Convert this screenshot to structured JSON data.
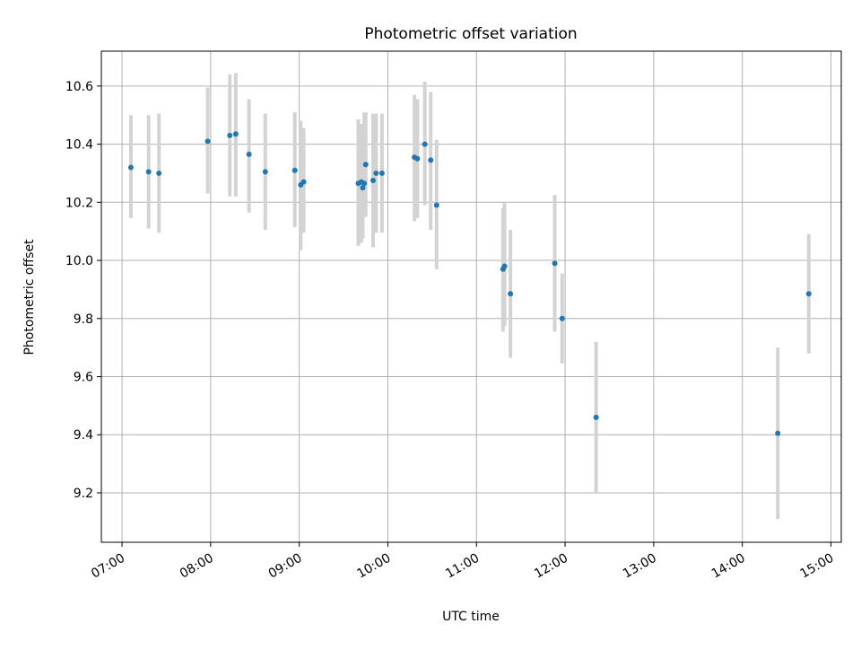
{
  "chart_data": {
    "type": "scatter",
    "title": "Photometric offset variation",
    "xlabel": "UTC time",
    "ylabel": "Photometric offset",
    "xlim": [
      "06:46",
      "15:07"
    ],
    "ylim": [
      9.03,
      10.72
    ],
    "xticks": [
      "07:00",
      "08:00",
      "09:00",
      "10:00",
      "11:00",
      "12:00",
      "13:00",
      "14:00",
      "15:00"
    ],
    "yticks": [
      9.2,
      9.4,
      9.6,
      9.8,
      10.0,
      10.2,
      10.4,
      10.6
    ],
    "ytick_labels": [
      "9.2",
      "9.4",
      "9.6",
      "9.8",
      "10.0",
      "10.2",
      "10.4",
      "10.6"
    ],
    "grid": true,
    "marker_color": "#1f77b4",
    "errorbar_color": "#d3d3d3",
    "series": [
      {
        "x": [
          "07:06",
          "07:18",
          "07:25",
          "07:58",
          "08:13",
          "08:17",
          "08:26",
          "08:37",
          "08:57",
          "09:01",
          "09:03",
          "09:40",
          "09:42",
          "09:43",
          "09:44",
          "09:45",
          "09:50",
          "09:52",
          "09:56",
          "10:18",
          "10:20",
          "10:25",
          "10:29",
          "10:33",
          "11:18",
          "11:19",
          "11:23",
          "11:53",
          "11:58",
          "12:21",
          "14:24",
          "14:45"
        ],
        "y": [
          10.32,
          10.305,
          10.3,
          10.41,
          10.43,
          10.435,
          10.365,
          10.305,
          10.31,
          10.26,
          10.27,
          10.265,
          10.27,
          10.25,
          10.265,
          10.33,
          10.275,
          10.3,
          10.3,
          10.355,
          10.35,
          10.4,
          10.345,
          10.19,
          9.97,
          9.98,
          9.885,
          9.99,
          9.8,
          9.46,
          9.405,
          9.885
        ],
        "yerr_low": [
          10.145,
          10.11,
          10.095,
          10.23,
          10.22,
          10.22,
          10.165,
          10.105,
          10.115,
          10.035,
          10.095,
          10.05,
          10.06,
          10.075,
          10.15,
          10.15,
          10.045,
          10.095,
          10.095,
          10.135,
          10.145,
          10.19,
          10.105,
          9.97,
          9.755,
          9.775,
          9.665,
          9.755,
          9.645,
          9.2,
          9.11,
          9.68
        ],
        "yerr_high": [
          10.5,
          10.5,
          10.505,
          10.595,
          10.64,
          10.645,
          10.555,
          10.505,
          10.51,
          10.48,
          10.455,
          10.485,
          10.47,
          10.465,
          10.51,
          10.51,
          10.505,
          10.505,
          10.505,
          10.57,
          10.555,
          10.615,
          10.58,
          10.415,
          10.18,
          10.2,
          10.105,
          10.225,
          9.955,
          9.72,
          9.7,
          10.09
        ]
      }
    ]
  }
}
